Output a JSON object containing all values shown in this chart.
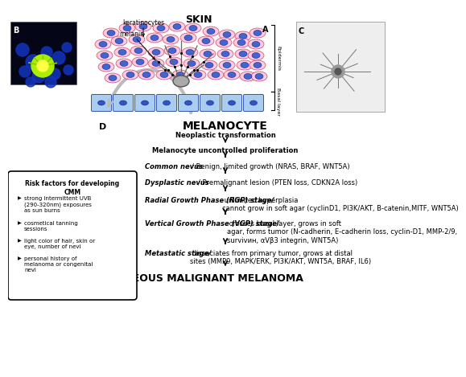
{
  "title_top": "SKIN",
  "title_bottom": "CUTANEOUS MALIGNANT MELANOMA",
  "melanocyte_label": "MELANOCYTE",
  "label_A": "A",
  "label_B": "B",
  "label_C": "C",
  "label_D": "D",
  "keratinocytes_label": "keratinocytes",
  "melanin_label": "melanin",
  "epidermis_label": "Epidermis",
  "basal_layer_label": "Basal layer",
  "step1": "Neoplastic transformation",
  "step2": "Melanocyte uncontrolled proliferation",
  "step3_italic": "Common nevus",
  "step3_rest": "/ Benign, limited growth (NRAS, BRAF, WNT5A)",
  "step4_italic": "Dysplastic nevus",
  "step4_rest": "/ Premalignant lesion (PTEN loss, CDKN2A loss)",
  "step5_italic": "Radial Growth Phase (RGP) stage/",
  "step5_rest": " unlimited hyperplasia\ncannot grow in soft agar (cyclinD1, PI3K/AKT, B-catenin,MITF, WNT5A)",
  "step6_italic": "Vertical Growth Phase (VGP) stage/",
  "step6_rest": " crosses bazal layer, grows in soft\nagar, forms tumor (N-cadherin, E-cadherin loss, cyclin-D1, MMP-2/9,\nsurvivин, αVβ3 integrin, WNT5A)",
  "step7_italic": "Metastatic stage/",
  "step7_rest": " dissociates from primary tumor, grows at distal\nsites (MMP9, MAPK/ERK, PI3K/AKT, WNT5A, BRAF, IL6)",
  "risk_title": "Risk factors for developing\nCMM",
  "risk_items": [
    "strong intermittent UVB\n(290-320nm) exposures\nas sun burns",
    "cosmetical tanning\nsessions",
    "light color of hair, skin or\neye, number of nevi",
    "personal history of\nmelanoma or congenital\nnevi"
  ],
  "bg_color": "#ffffff",
  "text_color": "#000000"
}
